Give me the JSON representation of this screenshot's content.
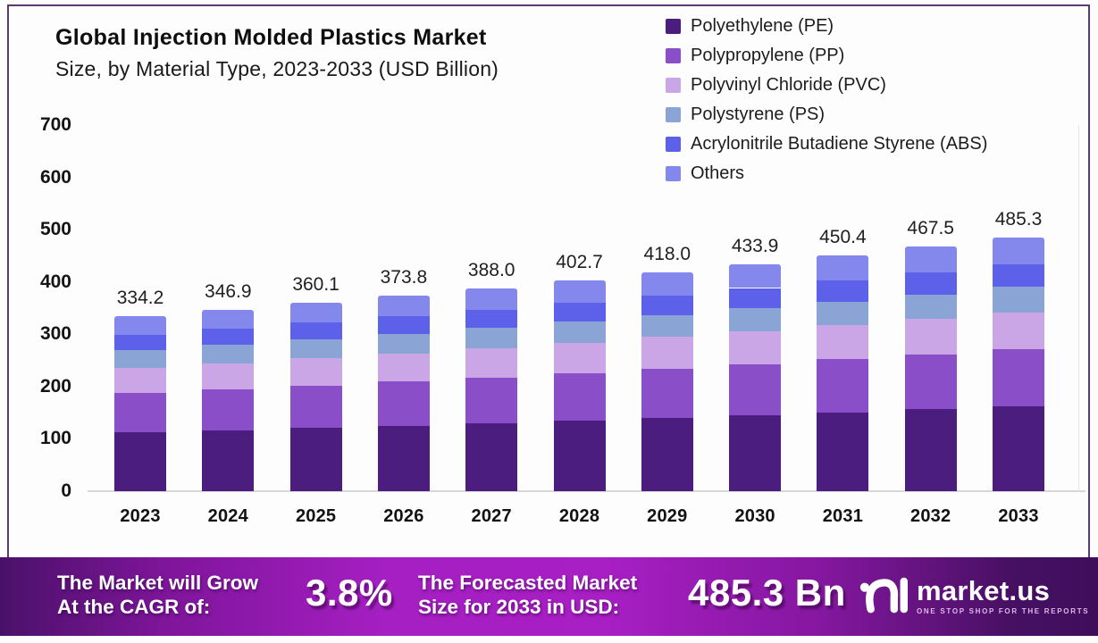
{
  "title": {
    "line1": "Global Injection Molded Plastics Market",
    "line2": "Size, by Material Type, 2023-2033 (USD Billion)"
  },
  "colors": {
    "frame_border": "#5d3a6e",
    "background": "#fdfdfe",
    "banner_gradient_left": "#4a1168",
    "banner_gradient_center": "#a81fc4",
    "banner_gradient_right": "#3e0e5a",
    "axis_text": "#141414",
    "baseline": "#d7d7d7"
  },
  "chart_data": {
    "type": "bar",
    "stacked": true,
    "title": "Global Injection Molded Plastics Market Size, by Material Type, 2023-2033 (USD Billion)",
    "xlabel": "",
    "ylabel": "USD Billion",
    "ylim": [
      0,
      700
    ],
    "yticks": [
      0,
      100,
      200,
      300,
      400,
      500,
      600,
      700
    ],
    "grid": false,
    "legend_position": "top-right",
    "value_labels": true,
    "categories": [
      "2023",
      "2024",
      "2025",
      "2026",
      "2027",
      "2028",
      "2029",
      "2030",
      "2031",
      "2032",
      "2033"
    ],
    "totals": [
      334.2,
      346.9,
      360.1,
      373.8,
      388.0,
      402.7,
      418.0,
      433.9,
      450.4,
      467.5,
      485.3
    ],
    "series": [
      {
        "key": "pe",
        "name": "Polyethylene (PE)",
        "color": "#4a1d7e",
        "values": [
          112.0,
          116.2,
          120.6,
          125.2,
          130.0,
          134.9,
          140.0,
          145.4,
          150.9,
          156.6,
          162.6
        ]
      },
      {
        "key": "pp",
        "name": "Polypropylene (PP)",
        "color": "#8a4ec8",
        "values": [
          75.2,
          78.1,
          81.0,
          84.1,
          87.3,
          90.6,
          94.1,
          97.6,
          101.3,
          105.2,
          109.2
        ]
      },
      {
        "key": "pvc",
        "name": "Polyvinyl Chloride (PVC)",
        "color": "#cba6e6",
        "values": [
          48.5,
          50.3,
          52.2,
          54.2,
          56.3,
          58.4,
          60.6,
          62.9,
          65.3,
          67.8,
          70.4
        ]
      },
      {
        "key": "ps",
        "name": "Polystyrene (PS)",
        "color": "#8aa4d6",
        "values": [
          33.4,
          34.7,
          36.0,
          37.4,
          38.8,
          40.3,
          41.8,
          43.4,
          45.0,
          46.8,
          48.5
        ]
      },
      {
        "key": "abs",
        "name": "Acrylonitrile Butadiene Styrene (ABS)",
        "color": "#5d60e8",
        "values": [
          30.1,
          31.2,
          32.4,
          33.6,
          34.9,
          36.2,
          37.6,
          39.1,
          40.5,
          42.1,
          43.7
        ]
      },
      {
        "key": "others",
        "name": "Others",
        "color": "#8488ec",
        "values": [
          35.0,
          36.4,
          37.9,
          39.3,
          40.7,
          42.3,
          43.9,
          45.5,
          47.4,
          49.0,
          50.9
        ]
      }
    ]
  },
  "banner": {
    "cagr_label_line1": "The Market will Grow",
    "cagr_label_line2": "At the CAGR of:",
    "cagr_value": "3.8%",
    "forecast_label_line1": "The Forecasted Market",
    "forecast_label_line2": "Size for 2033 in USD:",
    "forecast_value": "485.3 Bn",
    "logo_name": "market.us",
    "logo_tagline": "ONE STOP SHOP FOR THE REPORTS"
  }
}
